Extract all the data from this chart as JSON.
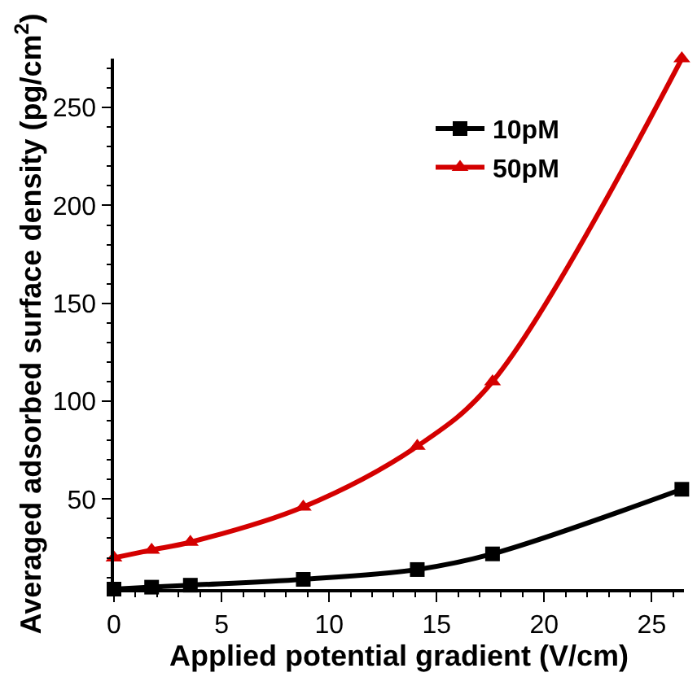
{
  "chart_data": {
    "type": "line",
    "xlabel": "Applied potential gradient (V/cm)",
    "ylabel": "Averaged adsorbed surface density (pg/cm$^{2}$)",
    "xlim": [
      0,
      26.5
    ],
    "ylim": [
      4,
      275
    ],
    "xticks": [
      0,
      5,
      10,
      15,
      20,
      25
    ],
    "yticks": [
      50,
      100,
      150,
      200,
      250
    ],
    "legend": "top right",
    "series": [
      {
        "name": "10pM",
        "color": "#000000",
        "marker": "square",
        "x": [
          0,
          1.75,
          3.55,
          8.8,
          14.1,
          17.6,
          26.4
        ],
        "values": [
          4,
          5,
          6,
          9,
          14,
          22,
          55
        ]
      },
      {
        "name": "50pM",
        "color": "#d40000",
        "marker": "triangle",
        "x": [
          0,
          1.75,
          3.55,
          8.8,
          14.1,
          17.6,
          26.4
        ],
        "values": [
          20,
          24,
          28,
          46,
          77,
          110,
          275
        ]
      }
    ]
  }
}
